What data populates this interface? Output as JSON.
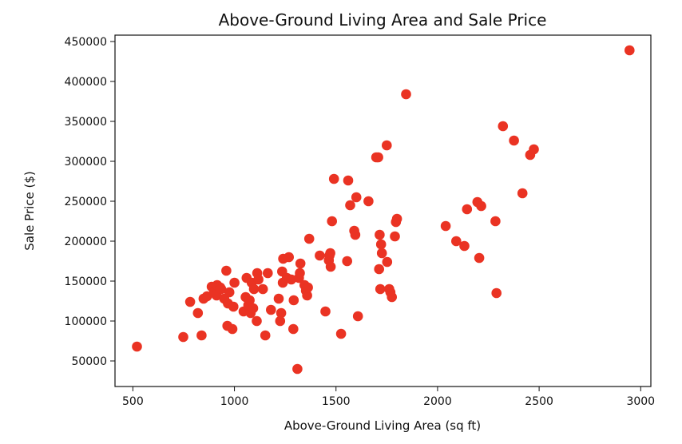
{
  "chart_data": {
    "type": "scatter",
    "title": "Above-Ground Living Area and Sale Price",
    "xlabel": "Above-Ground Living Area (sq ft)",
    "ylabel": "Sale Price ($)",
    "xlim": [
      412,
      3050
    ],
    "ylim": [
      18000,
      458000
    ],
    "xticks": [
      500,
      1000,
      1500,
      2000,
      2500,
      3000
    ],
    "yticks": [
      50000,
      100000,
      150000,
      200000,
      250000,
      300000,
      350000,
      400000,
      450000
    ],
    "xtick_labels": [
      "500",
      "1000",
      "1500",
      "2000",
      "2500",
      "3000"
    ],
    "ytick_labels": [
      "50000",
      "100000",
      "150000",
      "200000",
      "250000",
      "300000",
      "350000",
      "400000",
      "450000"
    ],
    "grid": false,
    "marker_color": "#ea3323",
    "series": [
      {
        "points": [
          [
            520,
            68000
          ],
          [
            748,
            80000
          ],
          [
            782,
            124000
          ],
          [
            820,
            110000
          ],
          [
            838,
            82000
          ],
          [
            848,
            128000
          ],
          [
            865,
            131000
          ],
          [
            888,
            143000
          ],
          [
            900,
            136000
          ],
          [
            912,
            132000
          ],
          [
            915,
            145000
          ],
          [
            930,
            142000
          ],
          [
            935,
            140000
          ],
          [
            950,
            128000
          ],
          [
            960,
            163000
          ],
          [
            965,
            94000
          ],
          [
            968,
            122000
          ],
          [
            975,
            136000
          ],
          [
            990,
            90000
          ],
          [
            995,
            118000
          ],
          [
            1000,
            148000
          ],
          [
            1045,
            112000
          ],
          [
            1055,
            130000
          ],
          [
            1060,
            154000
          ],
          [
            1068,
            120000
          ],
          [
            1075,
            126000
          ],
          [
            1080,
            110000
          ],
          [
            1085,
            148000
          ],
          [
            1092,
            116000
          ],
          [
            1096,
            140000
          ],
          [
            1110,
            100000
          ],
          [
            1112,
            160000
          ],
          [
            1118,
            152000
          ],
          [
            1140,
            140000
          ],
          [
            1152,
            82000
          ],
          [
            1164,
            160000
          ],
          [
            1180,
            114000
          ],
          [
            1218,
            128000
          ],
          [
            1225,
            100000
          ],
          [
            1230,
            110000
          ],
          [
            1235,
            162000
          ],
          [
            1238,
            148000
          ],
          [
            1240,
            178000
          ],
          [
            1258,
            154000
          ],
          [
            1268,
            180000
          ],
          [
            1280,
            152000
          ],
          [
            1290,
            90000
          ],
          [
            1292,
            126000
          ],
          [
            1310,
            40000
          ],
          [
            1318,
            154000
          ],
          [
            1322,
            160000
          ],
          [
            1325,
            172000
          ],
          [
            1345,
            145000
          ],
          [
            1352,
            138000
          ],
          [
            1358,
            132000
          ],
          [
            1362,
            142000
          ],
          [
            1368,
            203000
          ],
          [
            1420,
            182000
          ],
          [
            1448,
            112000
          ],
          [
            1465,
            176000
          ],
          [
            1468,
            182000
          ],
          [
            1472,
            185000
          ],
          [
            1474,
            168000
          ],
          [
            1480,
            225000
          ],
          [
            1490,
            278000
          ],
          [
            1525,
            84000
          ],
          [
            1555,
            175000
          ],
          [
            1560,
            276000
          ],
          [
            1570,
            245000
          ],
          [
            1590,
            213000
          ],
          [
            1595,
            208000
          ],
          [
            1600,
            255000
          ],
          [
            1608,
            106000
          ],
          [
            1660,
            250000
          ],
          [
            1698,
            305000
          ],
          [
            1708,
            305000
          ],
          [
            1712,
            165000
          ],
          [
            1715,
            208000
          ],
          [
            1718,
            140000
          ],
          [
            1722,
            196000
          ],
          [
            1726,
            185000
          ],
          [
            1750,
            320000
          ],
          [
            1752,
            174000
          ],
          [
            1762,
            140000
          ],
          [
            1768,
            136000
          ],
          [
            1775,
            130000
          ],
          [
            1790,
            206000
          ],
          [
            1795,
            224000
          ],
          [
            1800,
            228000
          ],
          [
            1845,
            384000
          ],
          [
            2040,
            219000
          ],
          [
            2092,
            200000
          ],
          [
            2132,
            194000
          ],
          [
            2145,
            240000
          ],
          [
            2196,
            249000
          ],
          [
            2205,
            179000
          ],
          [
            2215,
            244000
          ],
          [
            2285,
            225000
          ],
          [
            2290,
            135000
          ],
          [
            2322,
            344000
          ],
          [
            2376,
            326000
          ],
          [
            2418,
            260000
          ],
          [
            2456,
            308000
          ],
          [
            2474,
            315000
          ],
          [
            2945,
            439000
          ]
        ]
      }
    ]
  }
}
